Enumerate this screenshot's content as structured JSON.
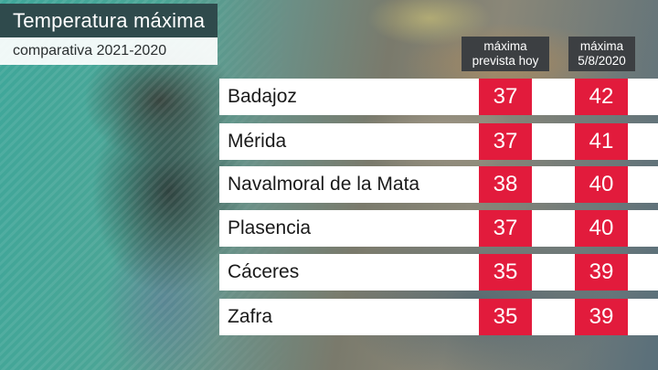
{
  "header": {
    "title": "Temperatura máxima",
    "subtitle": "comparativa 2021-2020"
  },
  "columns": {
    "today": [
      "máxima",
      "prevista hoy"
    ],
    "past": [
      "máxima",
      "5/8/2020"
    ]
  },
  "rows": [
    {
      "city": "Badajoz",
      "today": "37",
      "past": "42"
    },
    {
      "city": "Mérida",
      "today": "37",
      "past": "41"
    },
    {
      "city": "Navalmoral de la Mata",
      "today": "38",
      "past": "40"
    },
    {
      "city": "Plasencia",
      "today": "37",
      "past": "40"
    },
    {
      "city": "Cáceres",
      "today": "35",
      "past": "39"
    },
    {
      "city": "Zafra",
      "today": "35",
      "past": "39"
    }
  ],
  "colors": {
    "value_box": "#e21b3c",
    "title_bg": "#2f4a4c",
    "header_bg": "#3c3f42"
  }
}
